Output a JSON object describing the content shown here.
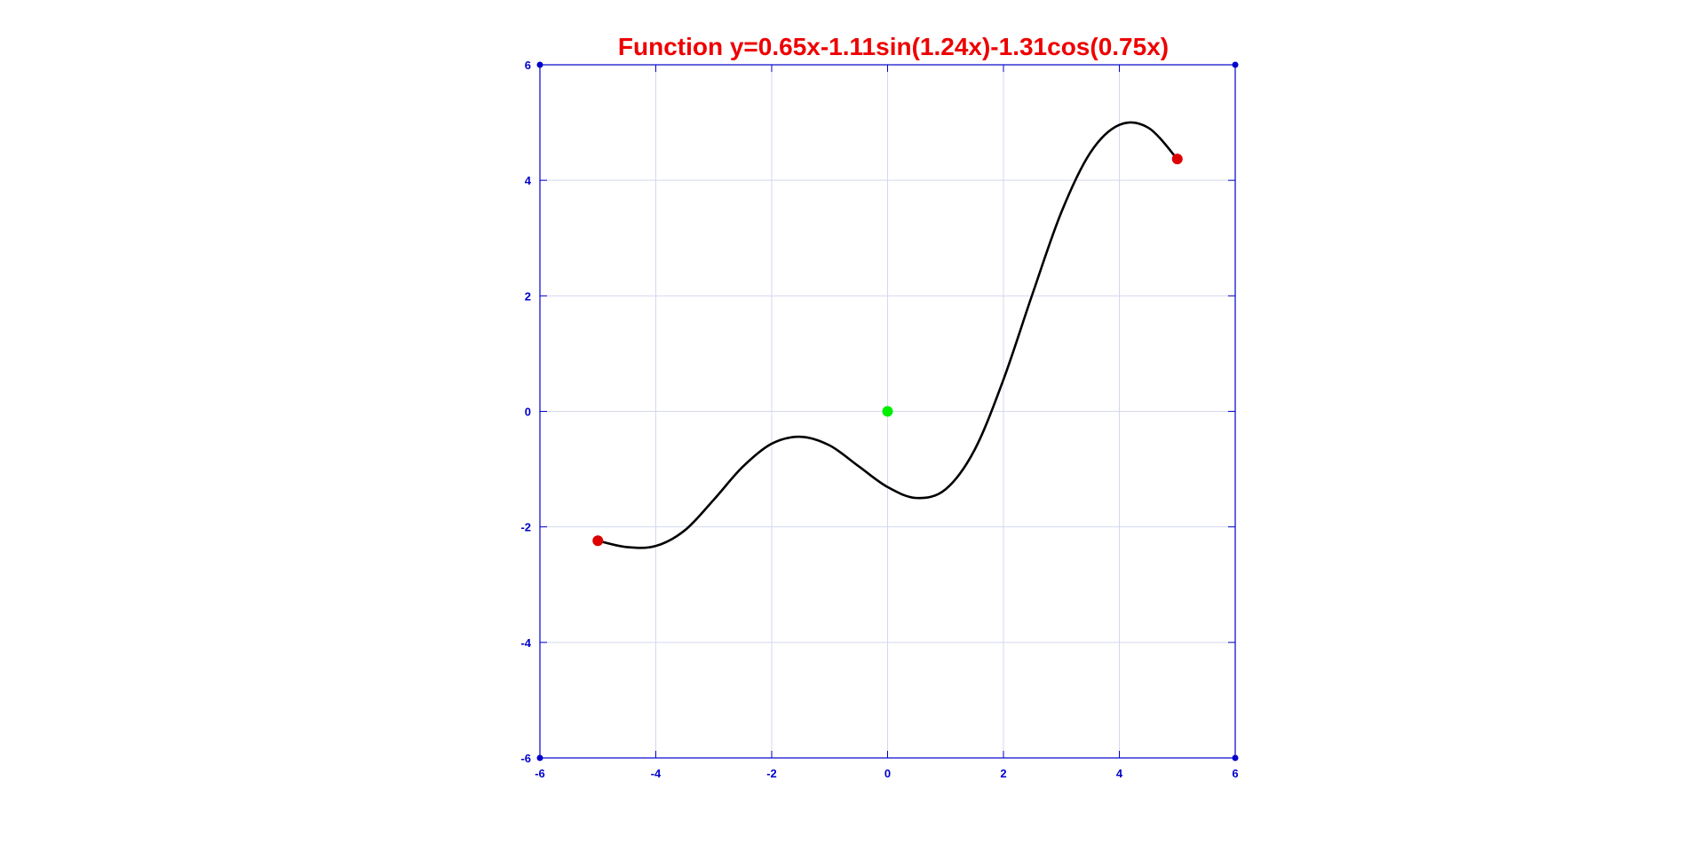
{
  "chart_data": {
    "type": "line",
    "title": "Function y=0.65x-1.11sin(1.24x)-1.31cos(0.75x)",
    "xlabel": "",
    "ylabel": "",
    "xlim": [
      -6,
      6
    ],
    "ylim": [
      -6,
      6
    ],
    "x_ticks": [
      -6,
      -4,
      -2,
      0,
      2,
      4,
      6
    ],
    "y_ticks": [
      -6,
      -4,
      -2,
      0,
      2,
      4,
      6
    ],
    "grid": true,
    "series": [
      {
        "x": [
          -5,
          -4.5,
          -4,
          -3.5,
          -3,
          -2.5,
          -2,
          -1.5,
          -1,
          -0.5,
          0,
          0.5,
          1,
          1.5,
          2,
          2.5,
          3,
          3.5,
          4,
          4.5,
          5
        ],
        "y": [
          -2.24,
          -2.35,
          -2.33,
          -2.06,
          -1.53,
          -0.96,
          -0.56,
          -0.44,
          -0.59,
          -0.95,
          -1.31,
          -1.5,
          -1.35,
          -0.67,
          0.55,
          2.03,
          3.45,
          4.48,
          4.96,
          4.91,
          4.37
        ]
      }
    ],
    "points": [
      {
        "x": -5,
        "y": -2.24,
        "color": "#dd0000"
      },
      {
        "x": 5,
        "y": 4.37,
        "color": "#dd0000"
      },
      {
        "x": 0,
        "y": 0,
        "color": "#00ee00"
      }
    ],
    "colors": {
      "title": "#ee0000",
      "axis": "#0000cc",
      "grid": "#d4d8ee",
      "curve": "#000000"
    }
  }
}
